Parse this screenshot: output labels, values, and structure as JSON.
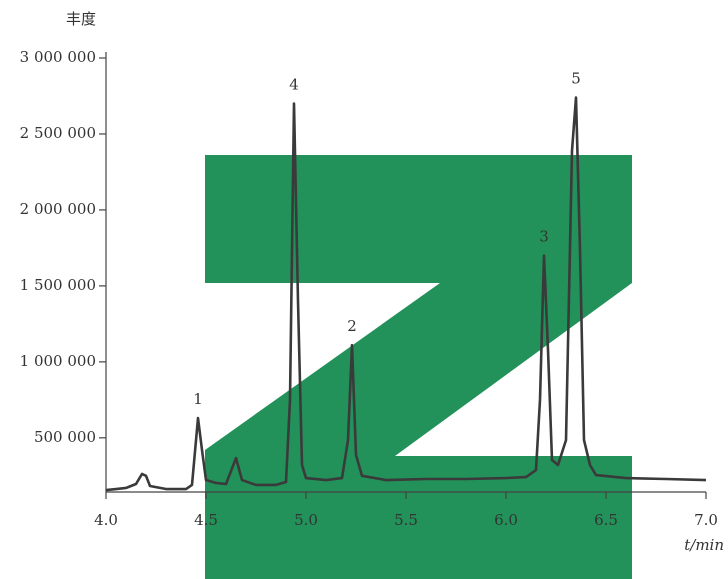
{
  "chart_data": {
    "type": "line",
    "y_label": "丰度",
    "x_label": "t/min",
    "x": [
      4.0,
      4.05,
      4.1,
      4.15,
      4.18,
      4.2,
      4.22,
      4.3,
      4.4,
      4.43,
      4.46,
      4.48,
      4.5,
      4.55,
      4.6,
      4.65,
      4.68,
      4.75,
      4.85,
      4.9,
      4.92,
      4.94,
      4.96,
      4.98,
      5.0,
      5.1,
      5.18,
      5.21,
      5.23,
      5.25,
      5.28,
      5.4,
      5.6,
      5.8,
      6.0,
      6.1,
      6.15,
      6.17,
      6.19,
      6.21,
      6.23,
      6.26,
      6.3,
      6.33,
      6.35,
      6.37,
      6.39,
      6.42,
      6.45,
      6.6,
      6.8,
      7.0
    ],
    "values": [
      156000,
      163000,
      170000,
      196000,
      262000,
      250000,
      183000,
      163000,
      163000,
      190000,
      630000,
      420000,
      222000,
      203000,
      196000,
      367000,
      222000,
      190000,
      190000,
      209000,
      750000,
      2700000,
      1400000,
      321000,
      235000,
      222000,
      235000,
      485000,
      1110000,
      387000,
      250000,
      222000,
      229000,
      229000,
      235000,
      242000,
      288000,
      750000,
      1700000,
      1080000,
      354000,
      321000,
      485000,
      2390000,
      2740000,
      1740000,
      485000,
      321000,
      255000,
      235000,
      229000,
      222000
    ],
    "color": "#3a3a3a",
    "peaks": [
      {
        "label": "1",
        "x": 4.46,
        "y": 630000
      },
      {
        "label": "4",
        "x": 4.94,
        "y": 2700000
      },
      {
        "label": "2",
        "x": 5.23,
        "y": 1110000
      },
      {
        "label": "3",
        "x": 6.19,
        "y": 1700000
      },
      {
        "label": "5",
        "x": 6.35,
        "y": 2740000
      }
    ],
    "xlim": [
      4.0,
      7.0
    ],
    "xticks": [
      {
        "value": 4,
        "label": "4.0"
      },
      4.5,
      {
        "value": 5,
        "label": "5.0"
      },
      5.5,
      {
        "value": 6,
        "label": "6.0"
      },
      6.5,
      {
        "value": 7,
        "label": "7.0"
      }
    ],
    "ylim": [
      150000,
      3000000
    ],
    "yticks": [
      {
        "value": 500000,
        "label": "500 000"
      },
      {
        "value": 1000000,
        "label": "1 000 000"
      },
      {
        "value": 1500000,
        "label": "1 500 000"
      },
      {
        "value": 2000000,
        "label": "2 000 000"
      },
      {
        "value": 2500000,
        "label": "2 500 000"
      },
      {
        "value": 3000000,
        "label": "3 000 000"
      }
    ]
  }
}
